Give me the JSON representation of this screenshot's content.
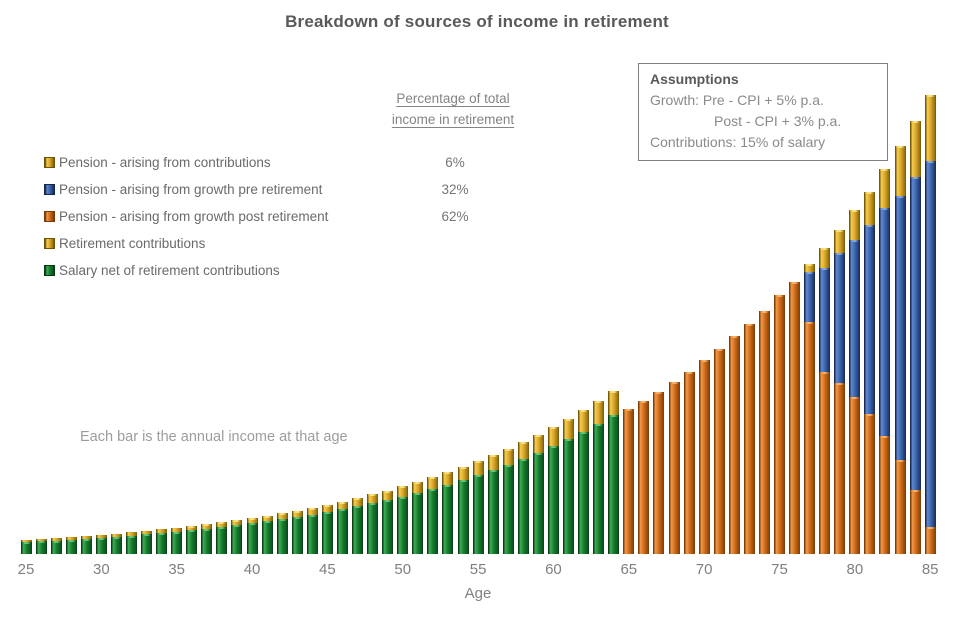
{
  "title": "Breakdown of sources of income in retirement",
  "note": "Each bar is the annual income at that age",
  "pct_column": {
    "header": "Percentage of total income in retirement"
  },
  "assumptions": {
    "heading": "Assumptions",
    "line_growth_pre": "Growth: Pre - CPI + 5% p.a.",
    "line_growth_post": "Post - CPI + 3% p.a.",
    "line_contributions": "Contributions: 15% of salary"
  },
  "legend": {
    "items": [
      {
        "label": "Pension - arising from contributions",
        "color_key": "gold",
        "pct": "6%"
      },
      {
        "label": "Pension - arising from growth pre retirement",
        "color_key": "blue",
        "pct": "32%"
      },
      {
        "label": "Pension - arising from growth post retirement",
        "color_key": "orange",
        "pct": "62%"
      },
      {
        "label": "Retirement contributions",
        "color_key": "gold",
        "pct": ""
      },
      {
        "label": "Salary net of retirement contributions",
        "color_key": "green",
        "pct": ""
      }
    ]
  },
  "colors": {
    "title_text": "#595959",
    "axis_text": "#7f7f7f",
    "green": {
      "edge": "#0a3a12",
      "light": "#3fae55",
      "main": "#157a2b",
      "dark": "#0d5520",
      "hi": "#6cc97e"
    },
    "gold": {
      "edge": "#6e5408",
      "light": "#f5cf4e",
      "main": "#d9a32a",
      "dark": "#93700e",
      "hi": "#fbe584"
    },
    "orange": {
      "edge": "#7a3a05",
      "light": "#f09a48",
      "main": "#cf6a1a",
      "dark": "#8f4608",
      "hi": "#f7b36e"
    },
    "blue": {
      "edge": "#16264a",
      "light": "#6189cf",
      "main": "#3a64ad",
      "dark": "#20386b",
      "hi": "#8fa9dc"
    }
  },
  "chart_data": {
    "type": "bar",
    "subtype": "stacked-3d-columns",
    "xlabel": "Age",
    "x_start": 25,
    "x_end": 85,
    "x_ticks": [
      25,
      30,
      35,
      40,
      45,
      50,
      55,
      60,
      65,
      70,
      75,
      80,
      85
    ],
    "ylim": [
      0,
      470
    ],
    "y_axis_visible": false,
    "units": "relative annual income (unlabeled axis)",
    "stack_order_bottom_to_top": [
      "salary_net",
      "retirement_contributions",
      "pension_growth_post",
      "pension_growth_pre",
      "pension_contributions"
    ],
    "series": [
      {
        "key": "salary_net",
        "name": "Salary net of retirement contributions",
        "color_key": "green",
        "values": [
          11.9,
          12.7,
          13.5,
          14.4,
          15.3,
          16.3,
          17.3,
          18.5,
          19.7,
          21,
          22.4,
          23.8,
          25.3,
          26.9,
          28.7,
          30.6,
          32.6,
          34.7,
          37,
          39.4,
          41.9,
          44.6,
          47.6,
          50.7,
          54,
          57.5,
          61.2,
          65.2,
          69.4,
          74,
          78.7,
          83.9,
          89.3,
          95.1,
          101.3,
          108,
          114.9,
          122.4,
          130.3,
          138.7,
          0,
          0,
          0,
          0,
          0,
          0,
          0,
          0,
          0,
          0,
          0,
          0,
          0,
          0,
          0,
          0,
          0,
          0,
          0,
          0,
          0
        ]
      },
      {
        "key": "retirement_contributions",
        "name": "Retirement contributions",
        "color_key": "gold",
        "values": [
          2.1,
          2.2,
          2.4,
          2.5,
          2.7,
          2.9,
          3.1,
          3.3,
          3.5,
          3.7,
          3.9,
          4.2,
          4.5,
          4.8,
          5.1,
          5.4,
          5.7,
          6.1,
          6.5,
          6.9,
          7.4,
          7.9,
          8.4,
          8.9,
          9.5,
          10.1,
          10.8,
          11.5,
          12.3,
          13.1,
          13.9,
          14.8,
          15.8,
          16.8,
          17.9,
          19.1,
          20.3,
          21.6,
          23,
          24.5,
          0,
          0,
          0,
          0,
          0,
          0,
          0,
          0,
          0,
          0,
          0,
          0,
          0,
          0,
          0,
          0,
          0,
          0,
          0,
          0,
          0
        ]
      },
      {
        "key": "pension_growth_post",
        "name": "Pension - arising from growth post retirement",
        "color_key": "orange",
        "values": [
          0,
          0,
          0,
          0,
          0,
          0,
          0,
          0,
          0,
          0,
          0,
          0,
          0,
          0,
          0,
          0,
          0,
          0,
          0,
          0,
          0,
          0,
          0,
          0,
          0,
          0,
          0,
          0,
          0,
          0,
          0,
          0,
          0,
          0,
          0,
          0,
          0,
          0,
          0,
          0,
          145,
          153,
          162,
          172,
          182,
          194,
          205,
          218,
          230,
          243,
          259,
          272,
          232,
          182,
          171,
          157,
          140,
          118,
          94,
          64,
          27
        ]
      },
      {
        "key": "pension_growth_pre",
        "name": "Pension - arising from growth pre retirement",
        "color_key": "blue",
        "values": [
          0,
          0,
          0,
          0,
          0,
          0,
          0,
          0,
          0,
          0,
          0,
          0,
          0,
          0,
          0,
          0,
          0,
          0,
          0,
          0,
          0,
          0,
          0,
          0,
          0,
          0,
          0,
          0,
          0,
          0,
          0,
          0,
          0,
          0,
          0,
          0,
          0,
          0,
          0,
          0,
          0,
          0,
          0,
          0,
          0,
          0,
          0,
          0,
          0,
          0,
          0,
          0,
          50,
          104,
          130,
          157,
          189,
          228,
          264,
          313,
          366
        ]
      },
      {
        "key": "pension_contributions",
        "name": "Pension - arising from contributions",
        "color_key": "gold",
        "values": [
          0,
          0,
          0,
          0,
          0,
          0,
          0,
          0,
          0,
          0,
          0,
          0,
          0,
          0,
          0,
          0,
          0,
          0,
          0,
          0,
          0,
          0,
          0,
          0,
          0,
          0,
          0,
          0,
          0,
          0,
          0,
          0,
          0,
          0,
          0,
          0,
          0,
          0,
          0,
          0,
          0,
          0,
          0,
          0,
          0,
          0,
          0,
          0,
          0,
          0,
          0,
          0,
          8,
          20,
          23,
          30,
          33,
          39,
          50,
          56,
          66
        ]
      }
    ]
  }
}
